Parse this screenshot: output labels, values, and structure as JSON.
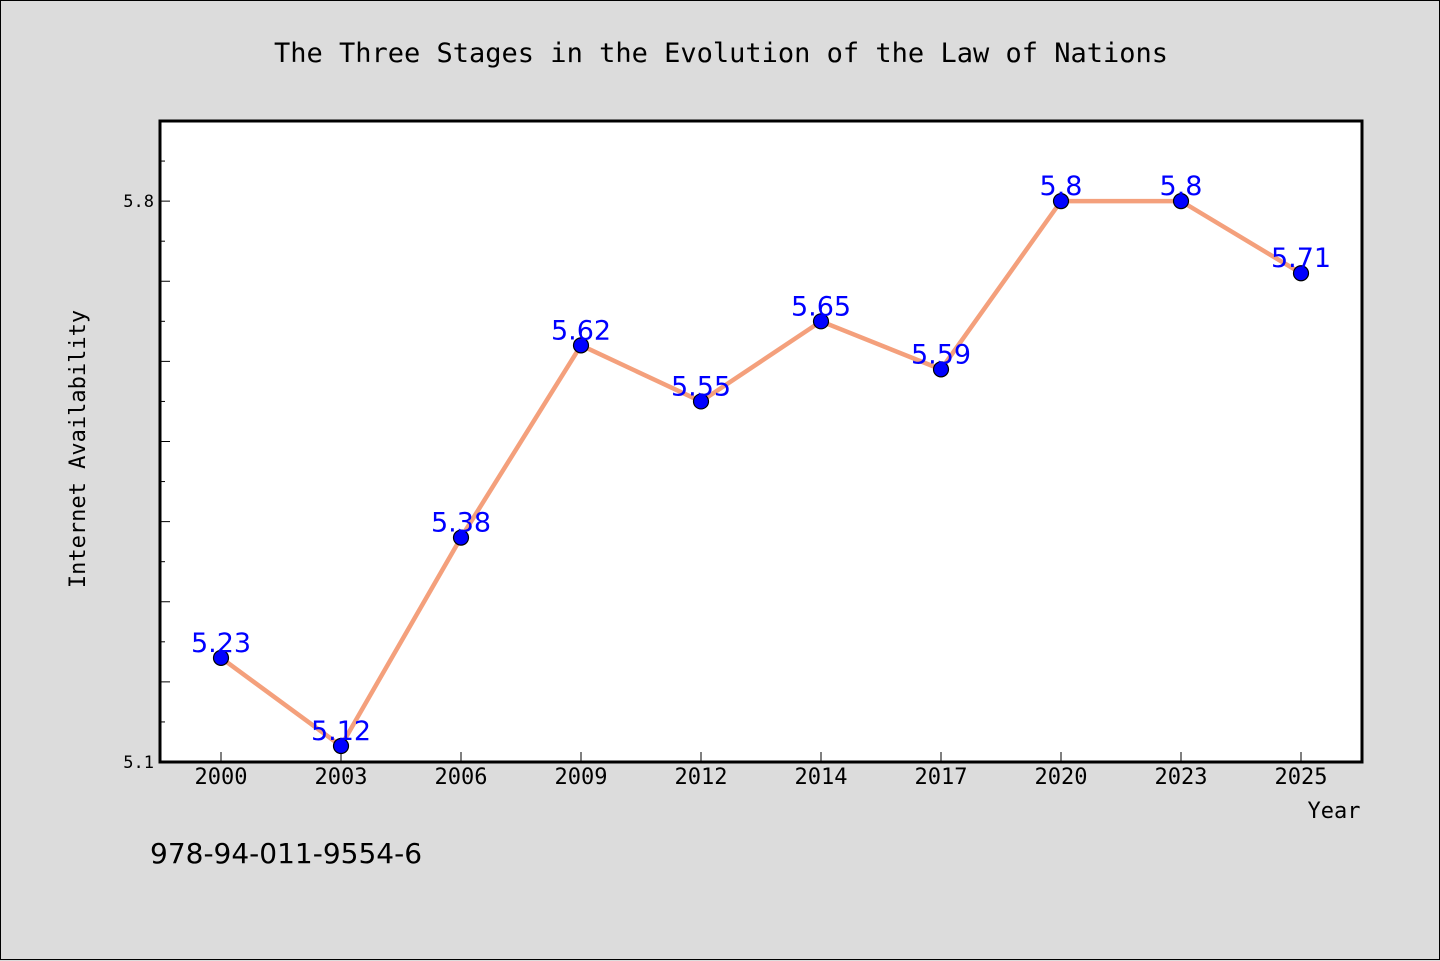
{
  "chart_data": {
    "type": "line",
    "title": "The Three Stages in the Evolution of the Law of Nations",
    "xlabel": "Year",
    "ylabel": "Internet Availability",
    "categories": [
      "2000",
      "2003",
      "2006",
      "2009",
      "2012",
      "2014",
      "2017",
      "2020",
      "2023",
      "2025"
    ],
    "series": [
      {
        "values": [
          5.23,
          5.12,
          5.38,
          5.62,
          5.55,
          5.65,
          5.59,
          5.8,
          5.8,
          5.71
        ],
        "labels": [
          "5.23",
          "5.12",
          "5.38",
          "5.62",
          "5.55",
          "5.65",
          "5.59",
          "5.8",
          "5.8",
          "5.71"
        ]
      }
    ],
    "ylim": [
      5.1,
      5.9
    ],
    "yticks_major": [
      "5.1",
      "5.8"
    ],
    "grid": false,
    "line_color": "#f4a07c",
    "marker_color": "#0000ff",
    "label_color": "#0000ff",
    "background": "#dcdcdc",
    "plot_background": "#ffffff"
  },
  "footer_text": "978-94-011-9554-6"
}
